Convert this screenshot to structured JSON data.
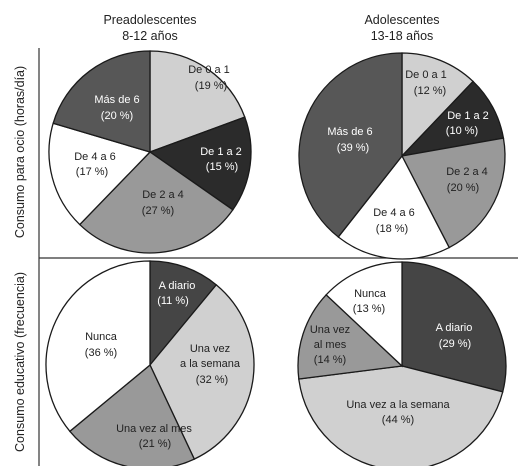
{
  "columns": [
    {
      "line1": "Preadolescentes",
      "line2": "8-12 años"
    },
    {
      "line1": "Adolescentes",
      "line2": "13-18 años"
    }
  ],
  "rows": [
    {
      "label": "Consumo para ocio (horas/día)"
    },
    {
      "label": "Consumo educativo (frecuencia)"
    }
  ],
  "chart_data": [
    {
      "type": "pie",
      "group": "Preadolescentes 8-12 años",
      "row": "Consumo para ocio (horas/día)",
      "slices": [
        {
          "label": "De 0 a 1",
          "value": 19,
          "text": "(19 %)",
          "color": "#d0d0d0",
          "text_color": "#222222"
        },
        {
          "label": "De 1 a 2",
          "value": 15,
          "text": "(15 %)",
          "color": "#2b2b2b",
          "text_color": "#ffffff"
        },
        {
          "label": "De 2 a 4",
          "value": 27,
          "text": "(27 %)",
          "color": "#999999",
          "text_color": "#222222"
        },
        {
          "label": "De 4 a 6",
          "value": 17,
          "text": "(17 %)",
          "color": "#ffffff",
          "text_color": "#222222"
        },
        {
          "label": "Más de 6",
          "value": 20,
          "text": "(20 %)",
          "color": "#575757",
          "text_color": "#ffffff"
        }
      ]
    },
    {
      "type": "pie",
      "group": "Adolescentes 13-18 años",
      "row": "Consumo para ocio (horas/día)",
      "slices": [
        {
          "label": "De 0 a 1",
          "value": 12,
          "text": "(12 %)",
          "color": "#d0d0d0",
          "text_color": "#222222"
        },
        {
          "label": "De 1 a 2",
          "value": 10,
          "text": "(10 %)",
          "color": "#2b2b2b",
          "text_color": "#ffffff"
        },
        {
          "label": "De 2 a 4",
          "value": 20,
          "text": "(20 %)",
          "color": "#999999",
          "text_color": "#222222"
        },
        {
          "label": "De 4 a 6",
          "value": 18,
          "text": "(18 %)",
          "color": "#ffffff",
          "text_color": "#222222"
        },
        {
          "label": "Más de 6",
          "value": 39,
          "text": "(39 %)",
          "color": "#575757",
          "text_color": "#ffffff"
        }
      ]
    },
    {
      "type": "pie",
      "group": "Preadolescentes 8-12 años",
      "row": "Consumo educativo (frecuencia)",
      "slices": [
        {
          "label": "A diario",
          "value": 11,
          "text": "(11 %)",
          "color": "#454545",
          "text_color": "#ffffff"
        },
        {
          "label": "Una vez a la semana",
          "value": 32,
          "text": "(32 %)",
          "color": "#d0d0d0",
          "text_color": "#222222"
        },
        {
          "label": "Una vez al mes",
          "value": 21,
          "text": "(21 %)",
          "color": "#999999",
          "text_color": "#222222"
        },
        {
          "label": "Nunca",
          "value": 36,
          "text": "(36 %)",
          "color": "#ffffff",
          "text_color": "#222222"
        }
      ]
    },
    {
      "type": "pie",
      "group": "Adolescentes 13-18 años",
      "row": "Consumo educativo (frecuencia)",
      "slices": [
        {
          "label": "A diario",
          "value": 29,
          "text": "(29 %)",
          "color": "#454545",
          "text_color": "#ffffff"
        },
        {
          "label": "Una vez a la semana",
          "value": 44,
          "text": "(44 %)",
          "color": "#d0d0d0",
          "text_color": "#222222"
        },
        {
          "label": "Una vez al mes",
          "value": 14,
          "text": "(14 %)",
          "color": "#999999",
          "text_color": "#222222"
        },
        {
          "label": "Nunca",
          "value": 13,
          "text": "(13 %)",
          "color": "#ffffff",
          "text_color": "#222222"
        }
      ]
    }
  ]
}
